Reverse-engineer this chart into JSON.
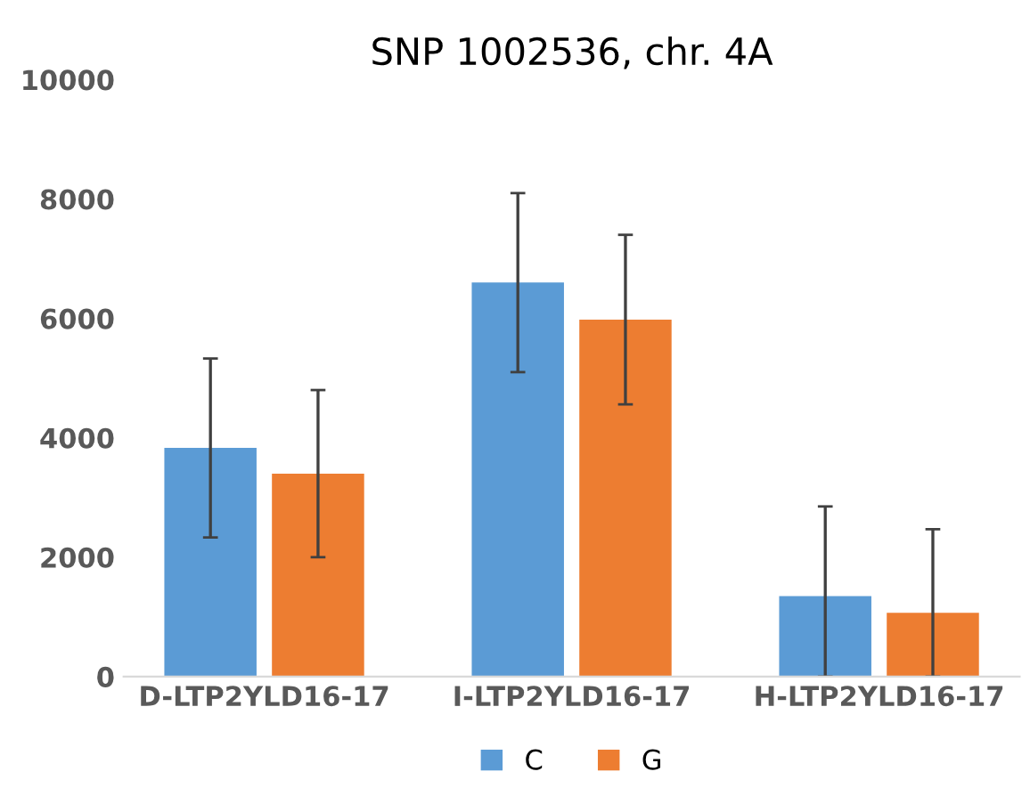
{
  "chart_data": {
    "type": "bar",
    "title": "SNP 1002536, chr. 4A",
    "categories": [
      "D-LTP2YLD16-17",
      "I-LTP2YLD16-17",
      "H-LTP2YLD16-17"
    ],
    "series": [
      {
        "name": "C",
        "color": "#5b9bd5",
        "values": [
          3830,
          6600,
          1350
        ],
        "errors": [
          1500,
          1500,
          [
            0,
            2850
          ]
        ]
      },
      {
        "name": "G",
        "color": "#ed7d31",
        "values": [
          3400,
          5980,
          1070
        ],
        "errors": [
          1400,
          1420,
          [
            0,
            2470
          ]
        ]
      }
    ],
    "ylim": [
      0,
      10000
    ],
    "yticks": [
      0,
      2000,
      4000,
      6000,
      8000,
      10000
    ],
    "grid": false,
    "legend": "bottom"
  }
}
